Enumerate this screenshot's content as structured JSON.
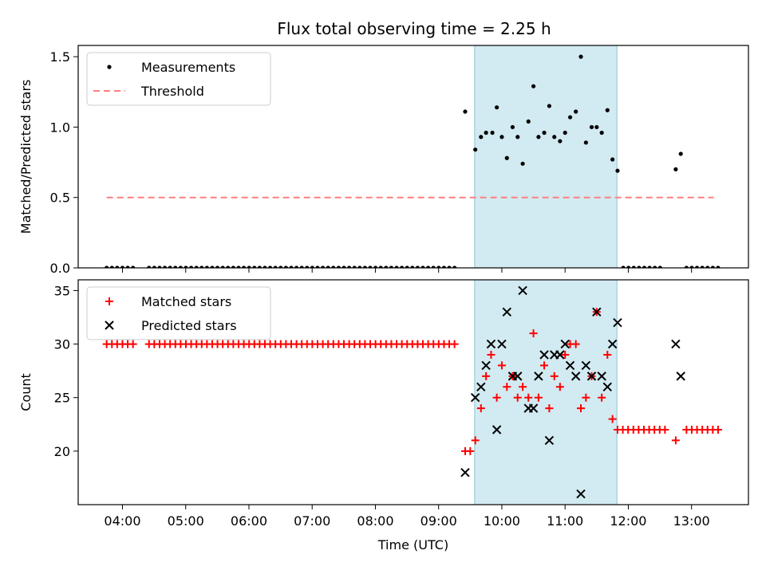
{
  "figure": {
    "title": "Flux total observing time = 2.25 h"
  },
  "chart_data": [
    {
      "type": "scatter",
      "name_key": "top",
      "title": "Flux total observing time = 2.25 h",
      "xlabel": "",
      "ylabel": "Matched/Predicted stars",
      "x_unit": "hours UTC",
      "xlim": [
        3.3,
        13.9
      ],
      "ylim": [
        0,
        1.58
      ],
      "yticks": [
        0.0,
        0.5,
        1.0,
        1.5
      ],
      "ytick_labels": [
        "0.0",
        "0.5",
        "1.0",
        "1.5"
      ],
      "xticks": [
        4,
        5,
        6,
        7,
        8,
        9,
        10,
        11,
        12,
        13
      ],
      "shaded_span": {
        "x": [
          9.57,
          11.82
        ],
        "color": "#add8e6"
      },
      "legend": {
        "position": "top-left",
        "entries": [
          {
            "label": "Measurements",
            "marker": "dot",
            "color": "#000000"
          },
          {
            "label": "Threshold",
            "marker": "dashed-line",
            "color": "#ff7f7f"
          }
        ]
      },
      "threshold": {
        "y": 0.5,
        "x_range": [
          3.75,
          13.35
        ],
        "color": "#ff7f7f"
      },
      "series": [
        {
          "name": "Measurements",
          "color": "#000000",
          "zero_runs": [
            [
              3.75,
              4.17,
              0.0833
            ],
            [
              4.42,
              9.33,
              0.0833
            ],
            [
              11.92,
              12.58,
              0.0833
            ],
            [
              12.92,
              13.42,
              0.0833
            ]
          ],
          "points": [
            [
              9.58,
              0.84
            ],
            [
              9.42,
              1.11
            ],
            [
              9.67,
              0.93
            ],
            [
              9.75,
              0.96
            ],
            [
              9.85,
              0.96
            ],
            [
              9.92,
              1.14
            ],
            [
              10.0,
              0.93
            ],
            [
              10.08,
              0.78
            ],
            [
              10.17,
              1.0
            ],
            [
              10.25,
              0.93
            ],
            [
              10.33,
              0.74
            ],
            [
              10.42,
              1.04
            ],
            [
              10.5,
              1.29
            ],
            [
              10.58,
              0.93
            ],
            [
              10.67,
              0.96
            ],
            [
              10.75,
              1.15
            ],
            [
              10.83,
              0.93
            ],
            [
              10.92,
              0.9
            ],
            [
              11.0,
              0.96
            ],
            [
              11.08,
              1.07
            ],
            [
              11.17,
              1.11
            ],
            [
              11.25,
              1.5
            ],
            [
              11.33,
              0.89
            ],
            [
              11.42,
              1.0
            ],
            [
              11.5,
              1.0
            ],
            [
              11.58,
              0.96
            ],
            [
              11.67,
              1.12
            ],
            [
              11.75,
              0.77
            ],
            [
              11.83,
              0.69
            ],
            [
              12.75,
              0.7
            ],
            [
              12.83,
              0.81
            ]
          ]
        }
      ]
    },
    {
      "type": "scatter",
      "name_key": "bottom",
      "title": "",
      "xlabel": "Time (UTC)",
      "ylabel": "Count",
      "x_unit": "hours UTC",
      "xlim": [
        3.3,
        13.9
      ],
      "ylim": [
        15,
        36
      ],
      "yticks": [
        20,
        25,
        30,
        35
      ],
      "ytick_labels": [
        "20",
        "25",
        "30",
        "35"
      ],
      "xticks": [
        4,
        5,
        6,
        7,
        8,
        9,
        10,
        11,
        12,
        13
      ],
      "xtick_labels": [
        "04:00",
        "05:00",
        "06:00",
        "07:00",
        "08:00",
        "09:00",
        "10:00",
        "11:00",
        "12:00",
        "13:00"
      ],
      "shaded_span": {
        "x": [
          9.57,
          11.82
        ],
        "color": "#add8e6"
      },
      "legend": {
        "position": "top-left",
        "entries": [
          {
            "label": "Matched stars",
            "marker": "plus",
            "color": "#ff0000"
          },
          {
            "label": "Predicted stars",
            "marker": "x",
            "color": "#000000"
          }
        ]
      },
      "series": [
        {
          "name": "Matched stars",
          "color": "#ff0000",
          "runs": [
            [
              3.75,
              4.17,
              0.0833,
              30
            ],
            [
              4.42,
              9.33,
              0.0833,
              30
            ],
            [
              11.83,
              12.58,
              0.0833,
              22
            ],
            [
              12.92,
              13.42,
              0.0833,
              22
            ]
          ],
          "points": [
            [
              9.42,
              20
            ],
            [
              9.5,
              20
            ],
            [
              9.58,
              21
            ],
            [
              9.67,
              24
            ],
            [
              9.75,
              27
            ],
            [
              9.83,
              29
            ],
            [
              9.92,
              25
            ],
            [
              10.0,
              28
            ],
            [
              10.08,
              26
            ],
            [
              10.17,
              27
            ],
            [
              10.25,
              25
            ],
            [
              10.33,
              26
            ],
            [
              10.42,
              25
            ],
            [
              10.5,
              31
            ],
            [
              10.58,
              25
            ],
            [
              10.67,
              28
            ],
            [
              10.75,
              24
            ],
            [
              10.83,
              27
            ],
            [
              10.92,
              26
            ],
            [
              11.0,
              29
            ],
            [
              11.08,
              30
            ],
            [
              11.17,
              30
            ],
            [
              11.25,
              24
            ],
            [
              11.33,
              25
            ],
            [
              11.42,
              27
            ],
            [
              11.5,
              33
            ],
            [
              11.58,
              25
            ],
            [
              11.67,
              29
            ],
            [
              11.75,
              23
            ],
            [
              12.75,
              21
            ]
          ]
        },
        {
          "name": "Predicted stars",
          "color": "#000000",
          "points": [
            [
              9.42,
              18
            ],
            [
              9.58,
              25
            ],
            [
              9.67,
              26
            ],
            [
              9.75,
              28
            ],
            [
              9.83,
              30
            ],
            [
              9.92,
              22
            ],
            [
              10.0,
              30
            ],
            [
              10.08,
              33
            ],
            [
              10.17,
              27
            ],
            [
              10.25,
              27
            ],
            [
              10.33,
              35
            ],
            [
              10.42,
              24
            ],
            [
              10.5,
              24
            ],
            [
              10.58,
              27
            ],
            [
              10.67,
              29
            ],
            [
              10.75,
              21
            ],
            [
              10.83,
              29
            ],
            [
              10.92,
              29
            ],
            [
              11.0,
              30
            ],
            [
              11.08,
              28
            ],
            [
              11.17,
              27
            ],
            [
              11.25,
              16
            ],
            [
              11.33,
              28
            ],
            [
              11.42,
              27
            ],
            [
              11.5,
              33
            ],
            [
              11.58,
              27
            ],
            [
              11.67,
              26
            ],
            [
              11.75,
              30
            ],
            [
              11.83,
              32
            ],
            [
              12.75,
              30
            ],
            [
              12.83,
              27
            ]
          ]
        }
      ]
    }
  ]
}
